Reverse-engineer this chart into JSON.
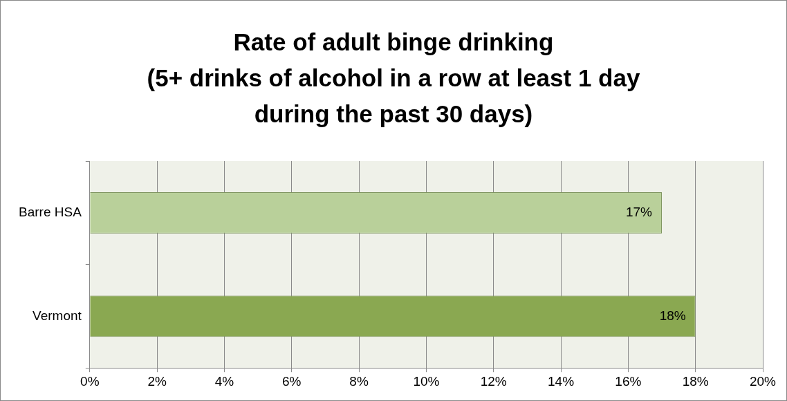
{
  "chart_data": {
    "type": "bar",
    "orientation": "horizontal",
    "title": "Rate of adult binge drinking\n(5+ drinks of alcohol in a row at least 1 day\nduring the past 30 days)",
    "categories": [
      "Barre HSA",
      "Vermont"
    ],
    "values": [
      17,
      18
    ],
    "colors": [
      "#b9d09a",
      "#8aa851"
    ],
    "value_labels": [
      "17%",
      "18%"
    ],
    "xlim": [
      0,
      20
    ],
    "xticks": [
      {
        "value": 0,
        "label": "0%"
      },
      {
        "value": 2,
        "label": "2%"
      },
      {
        "value": 4,
        "label": "4%"
      },
      {
        "value": 6,
        "label": "6%"
      },
      {
        "value": 8,
        "label": "8%"
      },
      {
        "value": 10,
        "label": "10%"
      },
      {
        "value": 12,
        "label": "12%"
      },
      {
        "value": 14,
        "label": "14%"
      },
      {
        "value": 16,
        "label": "16%"
      },
      {
        "value": 18,
        "label": "18%"
      },
      {
        "value": 20,
        "label": "20%"
      }
    ],
    "grid": "x",
    "legend": false
  }
}
